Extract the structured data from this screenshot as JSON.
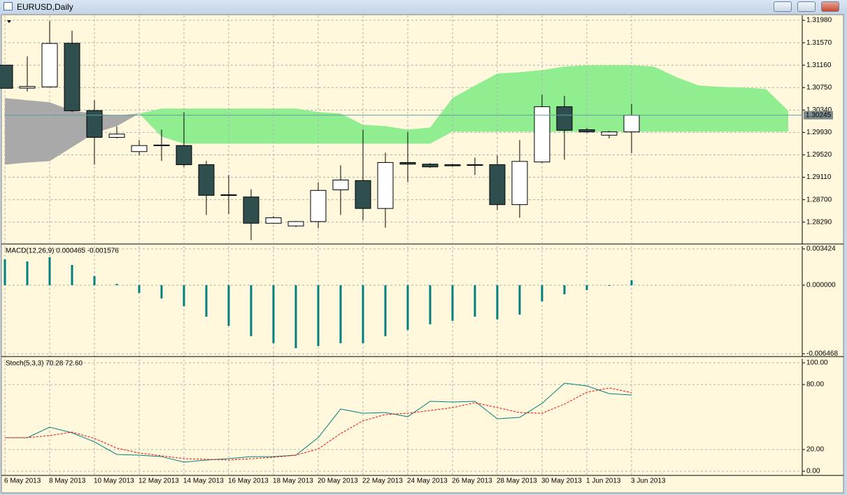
{
  "window": {
    "title": "EURUSD,Daily"
  },
  "chart_data": [
    {
      "type": "candlestick",
      "categories": [
        "6 May 2013",
        null,
        "8 May 2013",
        null,
        "10 May 2013",
        null,
        "12 May 2013",
        null,
        "14 May 2013",
        null,
        "16 May 2013",
        null,
        "18 May 2013",
        null,
        "20 May 2013",
        null,
        "22 May 2013",
        null,
        "24 May 2013",
        null,
        "26 May 2013",
        null,
        "28 May 2013",
        null,
        "30 May 2013",
        null,
        "1 Jun 2013",
        null,
        "3 Jun 2013",
        null,
        null,
        null,
        null,
        null,
        null,
        null
      ],
      "open": [
        1.3116,
        1.3074,
        1.30763,
        1.3156,
        1.3033,
        1.2984,
        1.2958,
        1.297,
        1.2969,
        1.2934,
        1.2879,
        1.2875,
        1.2827,
        1.2822,
        1.283,
        1.2888,
        1.2905,
        1.2854,
        1.2938,
        1.2935,
        1.2934,
        1.2933,
        1.2934,
        1.2861,
        1.2939,
        1.304,
        1.2998,
        1.2988,
        1.2994,
        null,
        null,
        null,
        null,
        null,
        null,
        null
      ],
      "high": [
        1.3116,
        1.3132,
        1.3197,
        1.3179,
        1.30519,
        1.3004,
        1.2979,
        1.2998,
        1.303,
        1.2941,
        1.2915,
        1.2889,
        1.284,
        1.2831,
        1.2902,
        1.2933,
        1.2998,
        1.2956,
        1.2994,
        1.2937,
        1.2935,
        1.2947,
        1.2951,
        1.2979,
        1.3062,
        1.306,
        1.3001,
        1.2996,
        1.3045,
        null,
        null,
        null,
        null,
        null,
        null,
        null
      ],
      "low": [
        1.30737,
        1.3068,
        1.3075,
        1.303,
        1.29341,
        1.2982,
        1.2951,
        1.2941,
        1.293,
        1.2842,
        1.2844,
        1.2796,
        1.2826,
        1.282,
        1.2818,
        1.2842,
        1.2832,
        1.2819,
        1.2902,
        1.2928,
        1.2931,
        1.2915,
        1.2851,
        1.2837,
        1.2937,
        1.2943,
        1.2992,
        1.2982,
        1.2955,
        null,
        null,
        null,
        null,
        null,
        null,
        null
      ],
      "close": [
        1.30737,
        1.3077,
        1.31557,
        1.30327,
        1.2984,
        1.299,
        1.2969,
        1.2969,
        1.2934,
        1.2878,
        1.2878,
        1.2827,
        1.2837,
        1.283,
        1.2887,
        1.2906,
        1.2854,
        1.2938,
        1.2935,
        1.293,
        1.2932,
        1.2934,
        1.2861,
        1.294,
        1.304,
        1.2997,
        1.2994,
        1.2994,
        1.30245,
        null,
        null,
        null,
        null,
        null,
        null,
        null
      ],
      "up_color": "#ffffff",
      "down_color": "#2f4f4f",
      "span_a": [
        1.29341,
        1.29379,
        1.29405,
        1.29661,
        1.29917,
        1.30045,
        1.30276,
        1.30366,
        1.30366,
        1.30366,
        1.30366,
        1.30366,
        1.30366,
        1.30366,
        1.30302,
        1.30276,
        1.30071,
        1.30045,
        1.29981,
        1.3002,
        1.30558,
        1.30788,
        1.31006,
        1.31032,
        1.3107,
        1.31134,
        1.3116,
        1.3116,
        1.3116,
        1.31134,
        1.30942,
        1.30788,
        1.30763,
        1.3075,
        1.30724,
        1.30327
      ],
      "span_b": [
        1.30558,
        1.30519,
        1.30481,
        1.30327,
        1.30276,
        1.30237,
        1.30276,
        1.29853,
        1.29725,
        1.29725,
        1.29725,
        1.29725,
        1.29725,
        1.29725,
        1.29725,
        1.29725,
        1.29725,
        1.29725,
        1.29725,
        1.29725,
        1.29943,
        1.29943,
        1.29943,
        1.29943,
        1.29943,
        1.29943,
        1.29943,
        1.29943,
        1.29943,
        1.29943,
        1.29943,
        1.29943,
        1.29943,
        1.29943,
        1.29943,
        1.29943
      ],
      "cloud_up_color": "#90ee90",
      "cloud_down_color": "#a9a9a9",
      "current_price": 1.30245,
      "current_price_color": "#5f9ea0",
      "ylim": [
        1.2789,
        1.3207
      ],
      "yticks": [
        {
          "value": 1.3198,
          "label": "1.31980"
        },
        {
          "value": 1.3157,
          "label": "1.31570"
        },
        {
          "value": 1.3116,
          "label": "1.31160"
        },
        {
          "value": 1.3075,
          "label": "1.30750"
        },
        {
          "value": 1.3034,
          "label": "1.30340"
        },
        {
          "value": 1.2993,
          "label": "1.29930"
        },
        {
          "value": 1.2952,
          "label": "1.29520"
        },
        {
          "value": 1.2911,
          "label": "1.29110"
        },
        {
          "value": 1.287,
          "label": "1.28700"
        },
        {
          "value": 1.2829,
          "label": "1.28290"
        }
      ],
      "grid": true
    },
    {
      "type": "bar",
      "title": "MACD(12,26,9) 0.000465 -0.001576",
      "color": "#008080",
      "values": [
        0.00244,
        0.00224,
        0.00264,
        0.00191,
        0.00086,
        0.00013,
        -0.00073,
        -0.00125,
        -0.00198,
        -0.00297,
        -0.00383,
        -0.00481,
        -0.00547,
        -0.00594,
        -0.00574,
        -0.00547,
        -0.00547,
        -0.00481,
        -0.00422,
        -0.00369,
        -0.00336,
        -0.00297,
        -0.00323,
        -0.00277,
        -0.00152,
        -0.00086,
        -0.00046,
        -2e-05,
        0.000465
      ],
      "ylim": [
        -0.006468,
        0.003424
      ],
      "yticks": [
        0.003424,
        {
          "value": 0,
          "label": "0.000000"
        },
        -0.006468
      ],
      "grid": true
    },
    {
      "type": "line",
      "title": "Stoch(5,3,3) 70.28 72.60",
      "series": [
        {
          "color": "#008080",
          "dashed": false,
          "values": [
            31.0,
            31.0,
            40.6,
            35.5,
            27.1,
            15.5,
            14.8,
            13.5,
            8.4,
            10.3,
            11.6,
            13.5,
            13.5,
            14.8,
            31.0,
            57.4,
            53.5,
            54.2,
            50.3,
            64.5,
            63.9,
            64.5,
            48.4,
            49.7,
            62.6,
            81.3,
            78.7,
            71.6,
            70.28
          ]
        },
        {
          "color": "#ff0000",
          "dashed": true,
          "values": [
            31.0,
            31.0,
            32.9,
            36.1,
            30.3,
            21.3,
            16.8,
            14.2,
            11.6,
            11.0,
            10.3,
            11.6,
            12.9,
            14.8,
            20.6,
            34.8,
            46.5,
            52.3,
            53.5,
            56.1,
            58.7,
            63.2,
            58.7,
            54.2,
            53.5,
            61.9,
            72.9,
            76.8,
            72.6
          ]
        }
      ],
      "ylim": [
        0,
        100
      ],
      "yticks": [
        {
          "value": 100,
          "label": "100.00"
        },
        {
          "value": 80,
          "label": "80.00"
        },
        {
          "value": 20,
          "label": "20.00"
        },
        {
          "value": 0,
          "label": "0.00"
        }
      ],
      "grid": true
    }
  ]
}
